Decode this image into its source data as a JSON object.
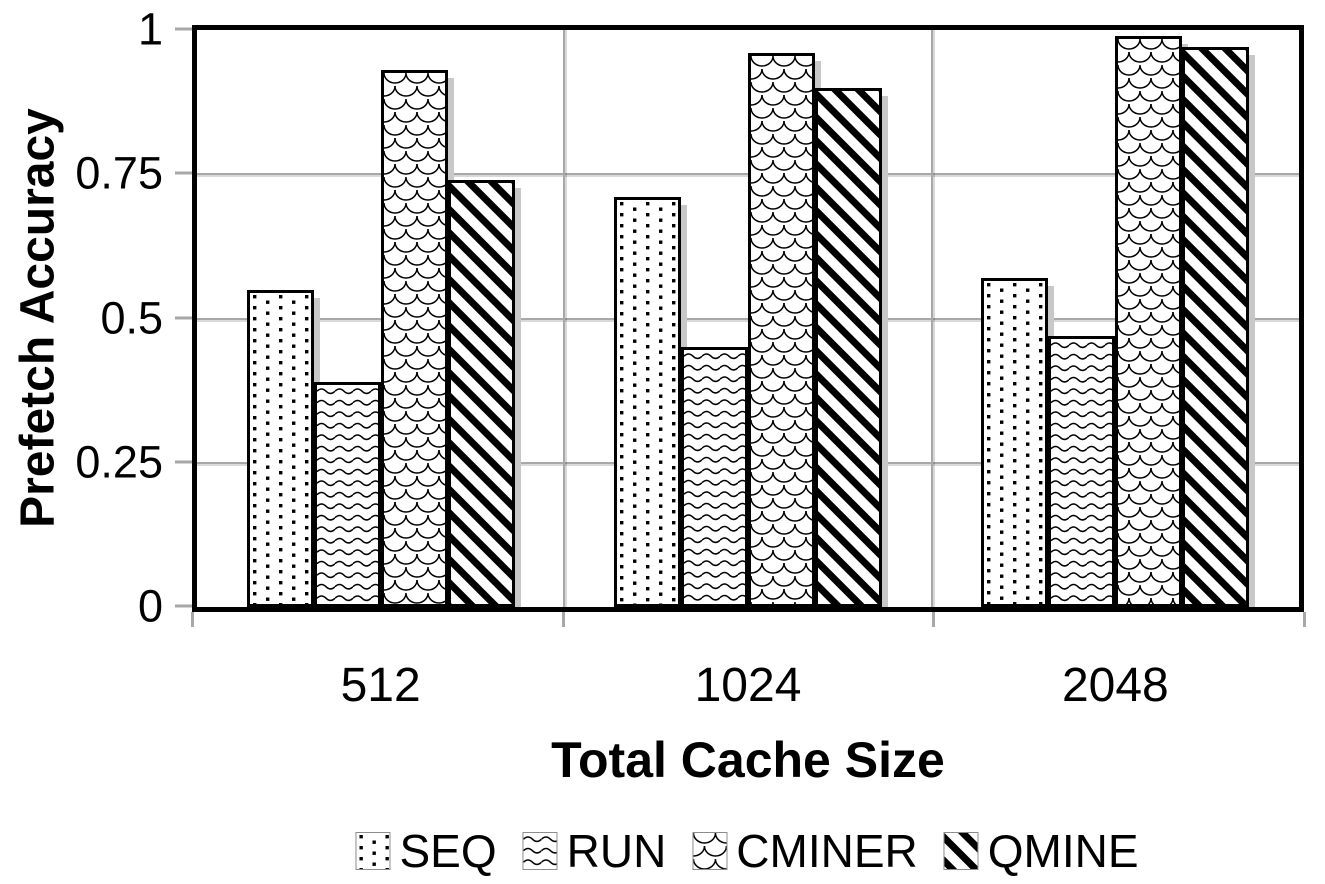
{
  "chart_data": {
    "type": "bar",
    "title": "",
    "xlabel": "Total Cache Size",
    "ylabel": "Prefetch Accuracy",
    "categories": [
      "512",
      "1024",
      "2048"
    ],
    "series": [
      {
        "name": "SEQ",
        "pattern": "dots",
        "values": [
          0.55,
          0.71,
          0.57
        ]
      },
      {
        "name": "RUN",
        "pattern": "waves",
        "values": [
          0.39,
          0.45,
          0.47
        ]
      },
      {
        "name": "CMINER",
        "pattern": "scales",
        "values": [
          0.93,
          0.96,
          0.99
        ]
      },
      {
        "name": "QMINE",
        "pattern": "diagonal-stripes",
        "values": [
          0.74,
          0.9,
          0.97
        ]
      }
    ],
    "ylim": [
      0,
      1
    ],
    "yticks": [
      0,
      0.25,
      0.5,
      0.75,
      1
    ],
    "ytick_labels": [
      "0",
      "0.25",
      "0.5",
      "0.75",
      "1"
    ],
    "grid": true,
    "legend_position": "bottom",
    "colors": {
      "bar_fill": "#ffffff",
      "bar_stroke": "#000000",
      "gridline": "#a8a8a8",
      "tick": "#a8a8a8",
      "bar_shadow": "#c8c8c8",
      "text": "#000000",
      "background": "#ffffff"
    }
  }
}
